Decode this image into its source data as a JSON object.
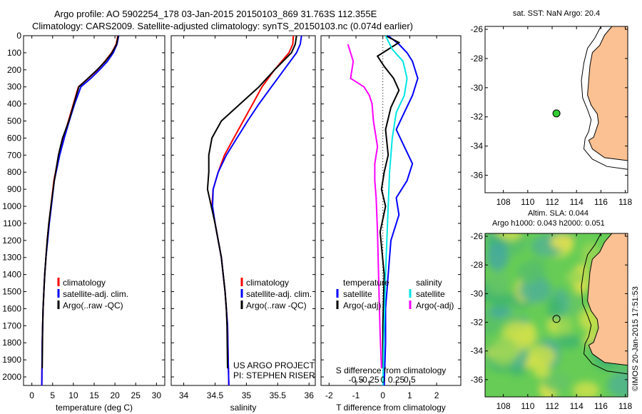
{
  "header": {
    "line1": "Argo profile: AO 5902254_178 03-Jan-2015 20150103_869 31.763S 112.355E",
    "line2": "Climatology: CARS2009. Satellite-adjusted climatology: synTS_20150103.nc (0.074d earlier)"
  },
  "colors": {
    "climatology": "#ff0000",
    "satellite": "#0000ff",
    "argo": "#000000",
    "sal_satellite": "#00e5e5",
    "sal_argo": "#ff00ff",
    "land": "#fbc193",
    "ocean_map": "#ffffff",
    "float_marker": "#33cc33"
  },
  "chart_data": [
    {
      "type": "line",
      "panel": "temperature",
      "xlabel": "temperature (deg C)",
      "ylabel": "",
      "xlim": [
        -2,
        32
      ],
      "ylim": [
        2050,
        0
      ],
      "xticks": [
        "0",
        "5",
        "10",
        "15",
        "20",
        "25",
        "30"
      ],
      "xtick_values": [
        0,
        5,
        10,
        15,
        20,
        25,
        30
      ],
      "yticks": [
        "0",
        "100",
        "200",
        "300",
        "400",
        "500",
        "600",
        "700",
        "800",
        "900",
        "1000",
        "1100",
        "1200",
        "1300",
        "1400",
        "1500",
        "1600",
        "1700",
        "1800",
        "1900",
        "2000"
      ],
      "legend": [
        "climatology",
        "satellite-adj. clim.",
        "Argo(..raw -QC)"
      ],
      "series": [
        {
          "name": "climatology",
          "color": "#ff0000",
          "x": [
            20.7,
            20.3,
            19.2,
            17.6,
            15.8,
            13.6,
            11.2,
            10.0,
            8.8,
            7.6,
            6.5,
            5.3,
            4.6,
            4.1,
            3.7,
            3.4,
            3.1,
            2.9,
            2.7,
            2.6,
            2.5,
            2.4
          ],
          "y": [
            0,
            50,
            100,
            150,
            200,
            250,
            300,
            400,
            500,
            600,
            700,
            850,
            1000,
            1100,
            1200,
            1300,
            1400,
            1500,
            1600,
            1700,
            1800,
            2050
          ]
        },
        {
          "name": "satellite-adj. clim.",
          "color": "#0000ff",
          "x": [
            20.9,
            20.5,
            19.6,
            18.2,
            16.3,
            14.2,
            11.8,
            10.3,
            9.0,
            7.8,
            6.7,
            5.4,
            4.7,
            4.2,
            3.8,
            3.4,
            3.1,
            2.9,
            2.7,
            2.6,
            2.5,
            2.4
          ],
          "y": [
            0,
            50,
            100,
            150,
            200,
            250,
            300,
            400,
            500,
            600,
            700,
            850,
            1000,
            1100,
            1200,
            1300,
            1400,
            1500,
            1600,
            1700,
            1800,
            2050
          ]
        },
        {
          "name": "Argo(..raw -QC)",
          "color": "#000000",
          "x": [
            20.8,
            20.4,
            19.3,
            17.7,
            15.7,
            13.5,
            11.3,
            10.1,
            8.9,
            7.4,
            6.4,
            5.4,
            4.6,
            4.1,
            3.7,
            3.4,
            3.1,
            2.9,
            2.7,
            2.6,
            2.5
          ],
          "y": [
            0,
            50,
            100,
            150,
            200,
            250,
            300,
            400,
            500,
            600,
            700,
            850,
            1000,
            1100,
            1200,
            1300,
            1400,
            1500,
            1600,
            1700,
            1950
          ]
        }
      ]
    },
    {
      "type": "line",
      "panel": "salinity",
      "xlabel": "salinity",
      "xlim": [
        33.8,
        36.1
      ],
      "ylim": [
        2050,
        0
      ],
      "xticks": [
        "34",
        "34.5",
        "35",
        "35.5",
        "36"
      ],
      "xtick_values": [
        34,
        34.5,
        35,
        35.5,
        36
      ],
      "legend": [
        "climatology",
        "satellite-adj. clim.",
        "Argo(..raw -QC)"
      ],
      "annotations": [
        "US ARGO PROJECT",
        "PI: STEPHEN RISER"
      ],
      "series": [
        {
          "name": "climatology",
          "color": "#ff0000",
          "x": [
            35.75,
            35.74,
            35.68,
            35.45,
            35.25,
            35.1,
            34.95,
            34.8,
            34.65,
            34.55,
            34.47,
            34.45,
            34.5,
            34.55,
            34.6,
            34.63,
            34.66,
            34.68,
            34.7,
            34.71,
            34.72
          ],
          "y": [
            0,
            50,
            100,
            200,
            300,
            400,
            500,
            600,
            700,
            800,
            900,
            1000,
            1100,
            1200,
            1300,
            1400,
            1500,
            1600,
            1700,
            1900,
            2050
          ]
        },
        {
          "name": "satellite-adj. clim.",
          "color": "#0000ff",
          "x": [
            35.88,
            35.86,
            35.8,
            35.6,
            35.4,
            35.2,
            35.02,
            34.85,
            34.68,
            34.55,
            34.47,
            34.46,
            34.5,
            34.55,
            34.6,
            34.63,
            34.66,
            34.68,
            34.7,
            34.71,
            34.72
          ],
          "y": [
            0,
            50,
            100,
            200,
            300,
            400,
            500,
            600,
            700,
            800,
            900,
            1000,
            1100,
            1200,
            1300,
            1400,
            1500,
            1600,
            1700,
            1900,
            2050
          ]
        },
        {
          "name": "Argo(..raw -QC)",
          "color": "#000000",
          "x": [
            35.8,
            35.78,
            35.72,
            35.45,
            35.2,
            34.9,
            34.6,
            34.45,
            34.4,
            34.4,
            34.38,
            34.44,
            34.5,
            34.55,
            34.6,
            34.63,
            34.66,
            34.68,
            34.69,
            34.7
          ],
          "y": [
            0,
            50,
            100,
            200,
            300,
            400,
            500,
            600,
            700,
            800,
            900,
            1000,
            1100,
            1200,
            1300,
            1400,
            1500,
            1600,
            1700,
            1950
          ]
        }
      ]
    },
    {
      "type": "line",
      "panel": "difference",
      "xlabel": "T difference from climatology",
      "top_xlabel": "S difference from climatology",
      "xlim": [
        -2.3,
        2.9
      ],
      "ylim": [
        2050,
        0
      ],
      "xticks": [
        "-2",
        "-1",
        "0",
        "1",
        "2"
      ],
      "xtick_values": [
        -2,
        -1,
        0,
        1,
        2
      ],
      "top_xticks": [
        "-0.5",
        "-0.25",
        "0",
        "0.25",
        "0.5"
      ],
      "top_xtick_values": [
        -0.5,
        -0.25,
        0,
        0.25,
        0.5
      ],
      "legend_titles": [
        "temperature",
        "salinity"
      ],
      "legend": [
        "satellite",
        "Argo(-adj)",
        "satellite",
        "Argo(-adj)"
      ],
      "series": [
        {
          "name": "temperature satellite",
          "color": "#0000ff",
          "x": [
            0.2,
            0.6,
            0.9,
            1.1,
            1.3,
            1.1,
            0.8,
            0.5,
            0.8,
            1.1,
            0.9,
            0.5,
            0.6,
            0.3,
            0.2,
            0.1,
            0.1,
            0.05
          ],
          "y": [
            0,
            50,
            100,
            150,
            250,
            350,
            450,
            550,
            650,
            750,
            850,
            950,
            1050,
            1200,
            1400,
            1600,
            1800,
            2050
          ]
        },
        {
          "name": "temperature Argo(-adj)",
          "color": "#000000",
          "x": [
            0.1,
            0.6,
            0.2,
            -0.2,
            0.05,
            0.4,
            0.6,
            0.3,
            0.1,
            0.2,
            0.05,
            -0.05,
            0.1,
            -0.1,
            0.05,
            0.0,
            0.0
          ],
          "y": [
            0,
            40,
            80,
            120,
            180,
            250,
            320,
            420,
            550,
            700,
            800,
            900,
            1000,
            1150,
            1400,
            1700,
            1950
          ]
        },
        {
          "name": "salinity satellite",
          "color": "#00e5e5",
          "x": [
            0.1,
            0.35,
            0.75,
            0.9,
            0.8,
            0.5,
            0.35,
            0.25,
            0.2,
            0.15,
            0.1,
            0.05,
            0.0
          ],
          "y": [
            0,
            80,
            150,
            250,
            350,
            450,
            600,
            800,
            1000,
            1200,
            1400,
            1700,
            2050
          ]
        },
        {
          "name": "salinity Argo(-adj)",
          "color": "#ff00ff",
          "x": [
            -1.3,
            -1.1,
            -1.2,
            -0.7,
            -0.5,
            -0.4,
            -0.35,
            -0.2,
            -0.3,
            -0.3,
            -0.25,
            -0.2,
            -0.15,
            -0.1,
            -0.05
          ],
          "y": [
            50,
            150,
            250,
            300,
            350,
            400,
            500,
            650,
            750,
            850,
            950,
            1150,
            1450,
            1750,
            1950
          ]
        }
      ]
    },
    {
      "type": "scatter",
      "panel": "map-sst",
      "title": "sat. SST: NaN Argo: 20.4",
      "xlim": [
        106.5,
        118.2
      ],
      "ylim": [
        -37.2,
        -25.8
      ],
      "xticks": [
        "108",
        "110",
        "112",
        "114",
        "116",
        "118"
      ],
      "xtick_values": [
        108,
        110,
        112,
        114,
        116,
        118
      ],
      "yticks": [
        "-26",
        "-28",
        "-30",
        "-32",
        "-34",
        "-36"
      ],
      "ytick_values": [
        -26,
        -28,
        -30,
        -32,
        -34,
        -36
      ],
      "points": [
        {
          "lon": 112.355,
          "lat": -31.763
        }
      ]
    },
    {
      "type": "heatmap",
      "panel": "map-sla",
      "title_line1": "Altim. SLA: 0.044",
      "title_line2": "Argo h1000: 0.043 h2000: 0.051",
      "xlim": [
        106.5,
        118.2
      ],
      "ylim": [
        -37.2,
        -25.8
      ],
      "xticks": [
        "108",
        "110",
        "112",
        "114",
        "116",
        "118"
      ],
      "xtick_values": [
        108,
        110,
        112,
        114,
        116,
        118
      ],
      "yticks": [
        "-26",
        "-28",
        "-30",
        "-32",
        "-34",
        "-36"
      ],
      "ytick_values": [
        -26,
        -28,
        -30,
        -32,
        -34,
        -36
      ],
      "points": [
        {
          "lon": 112.355,
          "lat": -31.763
        }
      ]
    }
  ],
  "footer": {
    "credit": "©IMOS 20-Jan-2015 17:51:53"
  }
}
